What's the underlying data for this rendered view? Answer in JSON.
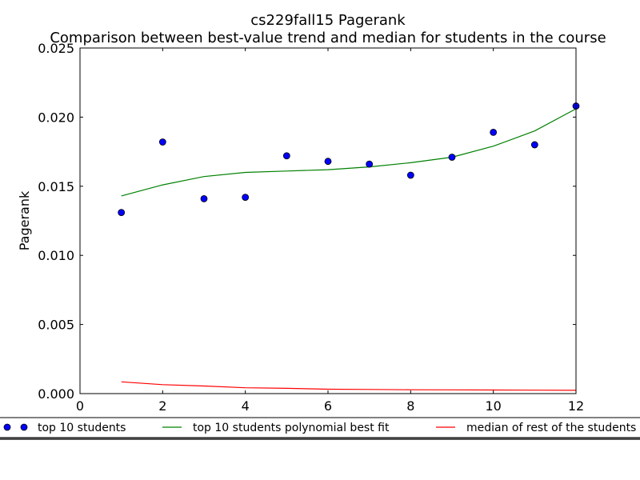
{
  "chart_data": {
    "type": "scatter",
    "title": "cs229fall15 Pagerank",
    "subtitle": "Comparison between best-value trend and median for students in the course",
    "xlabel": "",
    "ylabel": "Pagerank",
    "xlim": [
      0,
      12
    ],
    "ylim": [
      0,
      0.025
    ],
    "x_ticks": [
      "0",
      "2",
      "4",
      "6",
      "8",
      "10",
      "12"
    ],
    "y_ticks": [
      "0.000",
      "0.005",
      "0.010",
      "0.015",
      "0.020",
      "0.025"
    ],
    "grid": false,
    "legend_position": "bottom",
    "series": [
      {
        "name": "top 10 students",
        "kind": "scatter",
        "color": "#0000ff",
        "x": [
          1,
          2,
          3,
          4,
          5,
          6,
          7,
          8,
          9,
          10,
          11,
          12
        ],
        "y": [
          0.0131,
          0.0182,
          0.0141,
          0.0142,
          0.0172,
          0.0168,
          0.0166,
          0.0158,
          0.0171,
          0.0189,
          0.018,
          0.0208
        ]
      },
      {
        "name": "top 10 students polynomial best fit",
        "kind": "line",
        "color": "#008000",
        "x": [
          1,
          2,
          3,
          4,
          5,
          6,
          7,
          8,
          9,
          10,
          11,
          12
        ],
        "y": [
          0.0143,
          0.0151,
          0.0157,
          0.016,
          0.0161,
          0.0162,
          0.0164,
          0.0167,
          0.0171,
          0.0179,
          0.019,
          0.0206
        ]
      },
      {
        "name": "median of rest of the students",
        "kind": "line",
        "color": "#ff0000",
        "x": [
          1,
          2,
          3,
          4,
          5,
          6,
          7,
          8,
          9,
          10,
          11,
          12
        ],
        "y": [
          0.00085,
          0.00065,
          0.00055,
          0.00042,
          0.00038,
          0.00032,
          0.0003,
          0.00028,
          0.00027,
          0.00026,
          0.00025,
          0.00024
        ]
      }
    ]
  }
}
